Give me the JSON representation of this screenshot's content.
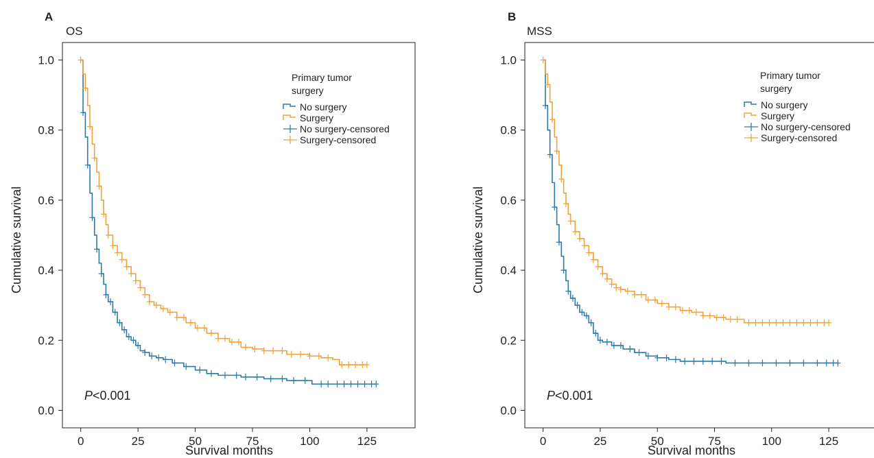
{
  "colors": {
    "no_surgery": "#2a7aa9",
    "surgery": "#f0a23c",
    "axis": "#231f20"
  },
  "panels": [
    {
      "letter": "A",
      "title": "OS",
      "pvalue_italic": "P",
      "pvalue_rest": "<0.001"
    },
    {
      "letter": "B",
      "title": "MSS",
      "pvalue_italic": "P",
      "pvalue_rest": "<0.001"
    }
  ],
  "chart_data": [
    {
      "type": "line",
      "step": true,
      "title": "OS",
      "xlabel": "Survival months",
      "ylabel": "Cumulative survival",
      "xlim": [
        -8,
        146
      ],
      "ylim": [
        -0.05,
        1.05
      ],
      "xticks": [
        0,
        25,
        50,
        75,
        100,
        125
      ],
      "yticks": [
        0.0,
        0.2,
        0.4,
        0.6,
        0.8,
        1.0
      ],
      "ytick_labels": [
        "0.0",
        "0.2",
        "0.4",
        "0.6",
        "0.8",
        "1.0"
      ],
      "grid": false,
      "legend": {
        "title": "Primary tumor surgery",
        "placement": "top-right",
        "entries": [
          "No surgery",
          "Surgery",
          "No surgery-censored",
          "Surgery-censored"
        ]
      },
      "annotation": "P<0.001",
      "series": [
        {
          "name": "No surgery",
          "color": "#2a7aa9",
          "x": [
            0,
            1,
            2,
            3,
            4,
            5,
            6,
            7,
            8,
            9,
            10,
            11,
            12,
            14,
            16,
            18,
            20,
            22,
            24,
            26,
            28,
            30,
            33,
            36,
            40,
            45,
            50,
            55,
            60,
            65,
            70,
            80,
            90,
            100,
            101,
            110,
            120,
            129
          ],
          "y": [
            1.0,
            0.85,
            0.78,
            0.7,
            0.62,
            0.55,
            0.5,
            0.46,
            0.42,
            0.39,
            0.36,
            0.33,
            0.31,
            0.28,
            0.25,
            0.23,
            0.21,
            0.2,
            0.185,
            0.17,
            0.165,
            0.155,
            0.15,
            0.145,
            0.135,
            0.125,
            0.115,
            0.105,
            0.1,
            0.1,
            0.095,
            0.09,
            0.085,
            0.085,
            0.075,
            0.075,
            0.075,
            0.075
          ],
          "censored_x": [
            1,
            3,
            5,
            7,
            9,
            11,
            13,
            15,
            17,
            19,
            21,
            23,
            25,
            28,
            31,
            34,
            37,
            41,
            46,
            52,
            57,
            63,
            68,
            72,
            77,
            83,
            88,
            93,
            98,
            105,
            108,
            112,
            115,
            118,
            121,
            124,
            127,
            129
          ]
        },
        {
          "name": "Surgery",
          "color": "#f0a23c",
          "x": [
            0,
            1,
            2,
            3,
            4,
            5,
            6,
            7,
            8,
            9,
            10,
            11,
            12,
            14,
            16,
            18,
            20,
            22,
            24,
            26,
            28,
            30,
            32,
            35,
            38,
            42,
            46,
            50,
            55,
            60,
            65,
            70,
            75,
            80,
            90,
            100,
            105,
            110,
            113,
            125
          ],
          "y": [
            1.0,
            0.96,
            0.92,
            0.87,
            0.81,
            0.76,
            0.72,
            0.68,
            0.64,
            0.6,
            0.56,
            0.53,
            0.5,
            0.47,
            0.45,
            0.43,
            0.41,
            0.39,
            0.37,
            0.35,
            0.33,
            0.31,
            0.3,
            0.29,
            0.28,
            0.265,
            0.25,
            0.235,
            0.22,
            0.205,
            0.195,
            0.18,
            0.175,
            0.17,
            0.16,
            0.155,
            0.15,
            0.145,
            0.13,
            0.13
          ],
          "censored_x": [
            0,
            2,
            4,
            6,
            8,
            10,
            12,
            14,
            16,
            18,
            20,
            22,
            24,
            26,
            28,
            30,
            33,
            36,
            39,
            42,
            45,
            48,
            51,
            54,
            57,
            60,
            63,
            66,
            69,
            72,
            76,
            80,
            84,
            88,
            92,
            96,
            100,
            104,
            108,
            114,
            117,
            120,
            123,
            125
          ]
        }
      ]
    },
    {
      "type": "line",
      "step": true,
      "title": "MSS",
      "xlabel": "Survival months",
      "ylabel": "Cumulative survival",
      "xlim": [
        -8,
        146
      ],
      "ylim": [
        -0.05,
        1.05
      ],
      "xticks": [
        0,
        25,
        50,
        75,
        100,
        125
      ],
      "yticks": [
        0.0,
        0.2,
        0.4,
        0.6,
        0.8,
        1.0
      ],
      "ytick_labels": [
        "0.0",
        "0.2",
        "0.4",
        "0.6",
        "0.8",
        "1.0"
      ],
      "grid": false,
      "legend": {
        "title": "Primary tumor surgery",
        "placement": "top-right",
        "entries": [
          "No surgery",
          "Surgery",
          "No surgery-censored",
          "Surgery-censored"
        ]
      },
      "annotation": "P<0.001",
      "series": [
        {
          "name": "No surgery",
          "color": "#2a7aa9",
          "x": [
            0,
            1,
            2,
            3,
            4,
            5,
            6,
            7,
            8,
            9,
            10,
            11,
            12,
            14,
            16,
            18,
            20,
            22,
            24,
            26,
            30,
            35,
            40,
            45,
            50,
            55,
            60,
            70,
            80,
            100,
            129
          ],
          "y": [
            1.0,
            0.87,
            0.8,
            0.73,
            0.65,
            0.58,
            0.53,
            0.48,
            0.44,
            0.4,
            0.37,
            0.34,
            0.32,
            0.3,
            0.28,
            0.27,
            0.25,
            0.22,
            0.2,
            0.195,
            0.185,
            0.175,
            0.165,
            0.155,
            0.15,
            0.145,
            0.14,
            0.14,
            0.135,
            0.135,
            0.135
          ],
          "censored_x": [
            1,
            3,
            5,
            7,
            9,
            11,
            13,
            15,
            17,
            19,
            21,
            23,
            25,
            28,
            31,
            34,
            38,
            42,
            46,
            50,
            54,
            58,
            62,
            66,
            70,
            74,
            78,
            84,
            90,
            96,
            102,
            108,
            114,
            120,
            124,
            127,
            129
          ]
        },
        {
          "name": "Surgery",
          "color": "#f0a23c",
          "x": [
            0,
            1,
            2,
            3,
            4,
            5,
            6,
            7,
            8,
            9,
            10,
            11,
            12,
            14,
            16,
            18,
            20,
            22,
            24,
            26,
            28,
            30,
            32,
            34,
            36,
            40,
            45,
            50,
            55,
            60,
            65,
            70,
            75,
            80,
            88,
            125
          ],
          "y": [
            1.0,
            0.96,
            0.93,
            0.88,
            0.83,
            0.78,
            0.74,
            0.7,
            0.66,
            0.62,
            0.59,
            0.56,
            0.54,
            0.51,
            0.49,
            0.47,
            0.45,
            0.43,
            0.41,
            0.39,
            0.375,
            0.36,
            0.35,
            0.345,
            0.34,
            0.33,
            0.315,
            0.305,
            0.295,
            0.285,
            0.28,
            0.27,
            0.265,
            0.26,
            0.25,
            0.25
          ],
          "censored_x": [
            0,
            2,
            4,
            6,
            8,
            10,
            12,
            14,
            16,
            18,
            20,
            22,
            24,
            26,
            28,
            30,
            32,
            34,
            37,
            40,
            43,
            46,
            49,
            52,
            55,
            58,
            61,
            64,
            67,
            70,
            73,
            76,
            79,
            82,
            85,
            90,
            93,
            96,
            99,
            102,
            105,
            108,
            111,
            114,
            117,
            120,
            123,
            125
          ]
        }
      ]
    }
  ]
}
